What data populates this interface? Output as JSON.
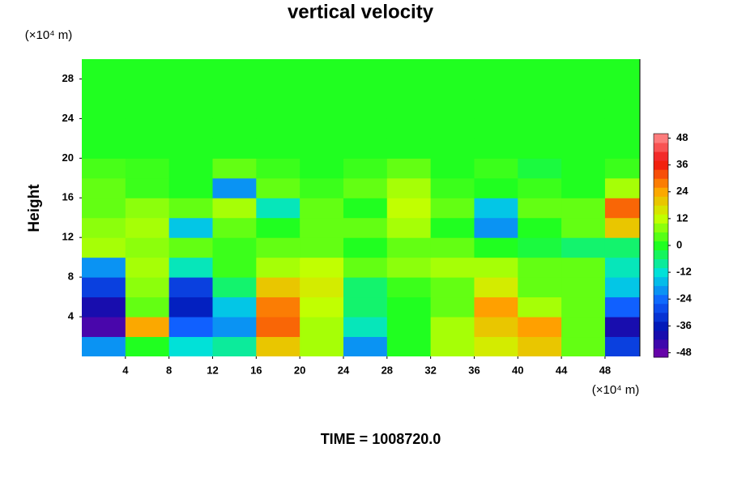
{
  "chart_data": {
    "type": "contour",
    "title": "vertical velocity",
    "y_label": "Height",
    "y_unit": "(×10⁴ m)",
    "x_unit": "(×10⁴ m)",
    "footer": "TIME = 1008720.0",
    "x": [
      2,
      6,
      10,
      14,
      18,
      22,
      26,
      30,
      34,
      38,
      42,
      46,
      50
    ],
    "y": [
      1,
      3,
      5,
      7,
      9,
      11,
      13,
      15,
      17,
      19,
      21,
      23,
      25,
      27,
      29
    ],
    "z": [
      [
        -20,
        0,
        -12,
        -8,
        20,
        10,
        -20,
        0,
        10,
        15,
        20,
        5,
        -30
      ],
      [
        -45,
        24,
        -25,
        -20,
        30,
        10,
        -10,
        0,
        10,
        20,
        25,
        5,
        -40
      ],
      [
        -40,
        5,
        -35,
        -15,
        28,
        12,
        -5,
        0,
        5,
        25,
        10,
        5,
        -25
      ],
      [
        -30,
        8,
        -30,
        -5,
        20,
        15,
        -5,
        2,
        5,
        15,
        5,
        5,
        -15
      ],
      [
        -20,
        10,
        -10,
        2,
        10,
        12,
        5,
        8,
        10,
        10,
        5,
        5,
        -10
      ],
      [
        10,
        8,
        5,
        2,
        5,
        5,
        0,
        5,
        5,
        0,
        -2,
        -5,
        -5
      ],
      [
        8,
        10,
        -15,
        5,
        0,
        5,
        5,
        10,
        0,
        -20,
        0,
        5,
        20
      ],
      [
        5,
        8,
        5,
        10,
        -10,
        5,
        0,
        12,
        5,
        -15,
        5,
        5,
        30
      ],
      [
        5,
        2,
        0,
        -20,
        5,
        2,
        5,
        10,
        2,
        0,
        2,
        0,
        10
      ],
      [
        3,
        2,
        0,
        5,
        2,
        0,
        2,
        5,
        0,
        2,
        -2,
        0,
        2
      ],
      [
        0,
        0,
        0,
        0,
        0,
        0,
        0,
        0,
        0,
        0,
        0,
        0,
        0
      ],
      [
        0,
        0,
        0,
        0,
        0,
        0,
        0,
        0,
        0,
        0,
        0,
        0,
        0
      ],
      [
        0,
        0,
        0,
        0,
        0,
        0,
        0,
        0,
        0,
        0,
        0,
        0,
        0
      ],
      [
        0,
        0,
        0,
        0,
        0,
        0,
        0,
        0,
        0,
        0,
        0,
        0,
        0
      ],
      [
        0,
        0,
        0,
        0,
        0,
        0,
        0,
        0,
        0,
        0,
        0,
        0,
        0
      ]
    ],
    "xlim": [
      0,
      51.2
    ],
    "ylim": [
      0,
      30
    ],
    "xticks": [
      4,
      8,
      12,
      16,
      20,
      24,
      28,
      32,
      36,
      40,
      44,
      48
    ],
    "yticks": [
      4,
      8,
      12,
      16,
      20,
      24,
      28
    ],
    "clim": [
      -50,
      50
    ],
    "cticks": [
      -48,
      -36,
      -24,
      -12,
      0,
      12,
      24,
      36,
      48
    ],
    "colormap": [
      "#7a00a8",
      "#0010b0",
      "#1060ff",
      "#00e0e0",
      "#20ff20",
      "#c8ff00",
      "#ffa000",
      "#f01010",
      "#ff9090"
    ]
  }
}
